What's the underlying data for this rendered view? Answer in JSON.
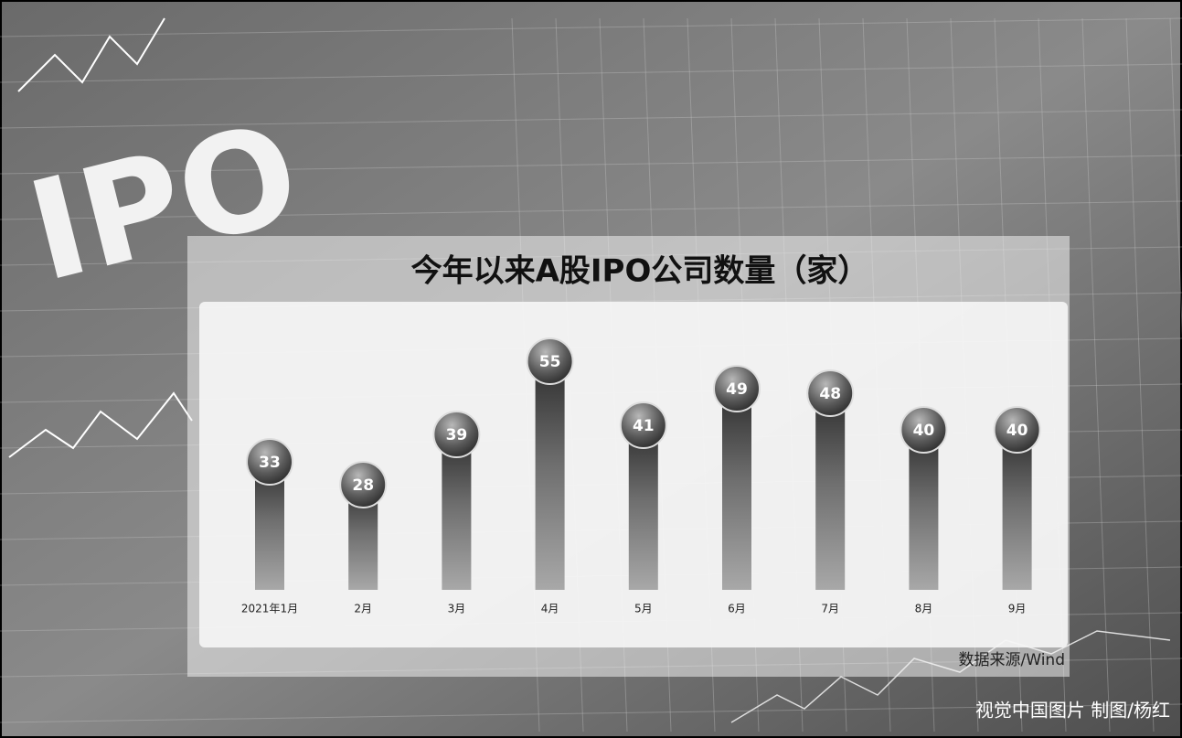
{
  "chart_data": {
    "type": "bar",
    "title": "今年以来A股IPO公司数量（家）",
    "categories": [
      "2021年1月",
      "2月",
      "3月",
      "4月",
      "5月",
      "6月",
      "7月",
      "8月",
      "9月"
    ],
    "values": [
      33,
      28,
      39,
      55,
      41,
      49,
      48,
      40,
      40
    ],
    "color": "#555555",
    "background_text": "IPO",
    "source": "数据来源/Wind",
    "credit": "视觉中国图片 制图/杨红"
  }
}
